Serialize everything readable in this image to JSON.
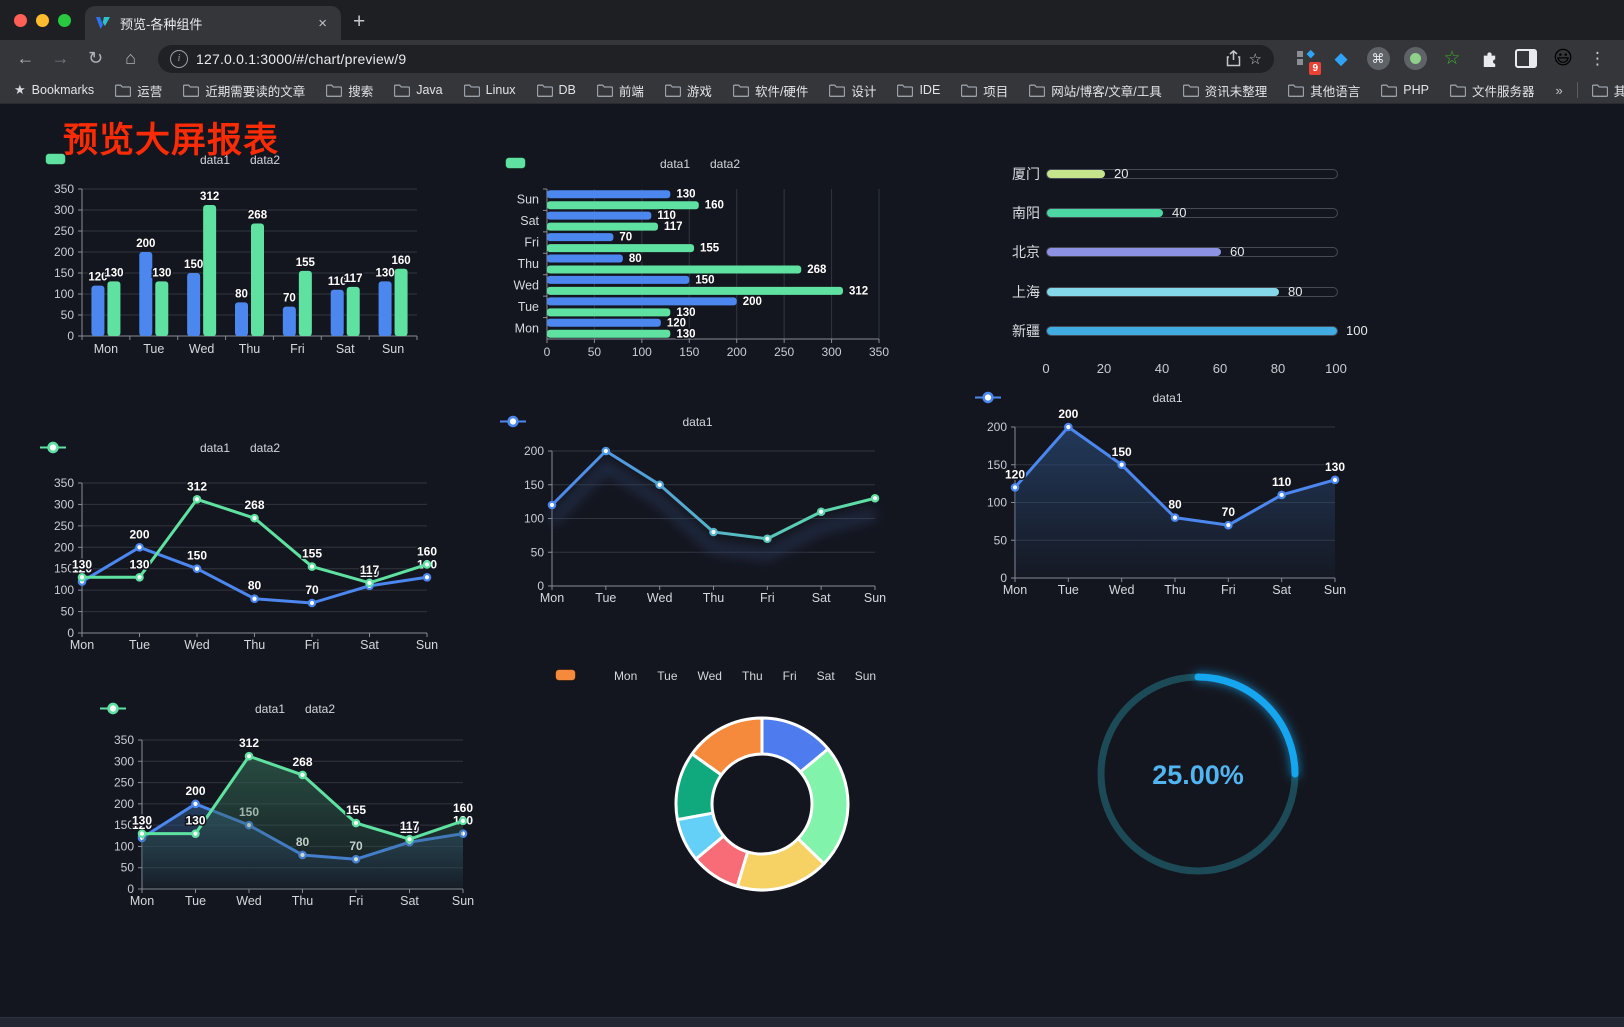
{
  "browser": {
    "traffic_lights": [
      "#ff5f57",
      "#febc2e",
      "#28c840"
    ],
    "tab": {
      "title": "预览-各种组件",
      "close": "×",
      "new_tab": "+"
    },
    "url": "127.0.0.1:3000/#/chart/preview/9",
    "icons": {
      "back": "←",
      "forward": "→",
      "reload": "↻",
      "home": "⌂",
      "info": "i",
      "share": "⬆",
      "star": "☆",
      "bookmarks_star": "★",
      "menu": "⋮",
      "command": "⌘",
      "diamond": "◆",
      "green_star": "☆",
      "emoji": "😃"
    },
    "extension_badge": "9",
    "bookmarks_label": "Bookmarks",
    "bookmarks": [
      "运营",
      "近期需要读的文章",
      "搜索",
      "Java",
      "Linux",
      "DB",
      "前端",
      "游戏",
      "软件/硬件",
      "设计",
      "IDE",
      "项目",
      "网站/博客/文章/工具",
      "资讯未整理",
      "其他语言",
      "PHP",
      "文件服务器"
    ],
    "bookmarks_overflow": "»",
    "other_bookmarks": "其他书签"
  },
  "page": {
    "title": "预览大屏报表",
    "title_color": "#fb2b05",
    "background": "#14161f"
  },
  "chart_data": [
    {
      "id": "bar-vertical",
      "type": "bar",
      "title": "",
      "categories": [
        "Mon",
        "Tue",
        "Wed",
        "Thu",
        "Fri",
        "Sat",
        "Sun"
      ],
      "series": [
        {
          "name": "data1",
          "color": "#4C87F0",
          "values": [
            120,
            200,
            150,
            80,
            70,
            110,
            130
          ]
        },
        {
          "name": "data2",
          "color": "#5FE2A1",
          "values": [
            130,
            130,
            312,
            268,
            155,
            117,
            160
          ]
        }
      ],
      "ylim": [
        0,
        350
      ],
      "ytick_step": 50,
      "grid": true,
      "value_labels": true,
      "legend_position": "top"
    },
    {
      "id": "bar-horizontal",
      "type": "bar-horizontal",
      "title": "",
      "categories": [
        "Mon",
        "Tue",
        "Wed",
        "Thu",
        "Fri",
        "Sat",
        "Sun"
      ],
      "series": [
        {
          "name": "data1",
          "color": "#4C87F0",
          "values": [
            120,
            200,
            150,
            80,
            70,
            110,
            130
          ]
        },
        {
          "name": "data2",
          "color": "#5FE2A1",
          "values": [
            130,
            130,
            312,
            268,
            155,
            117,
            160
          ]
        }
      ],
      "xlim": [
        0,
        350
      ],
      "xtick_step": 50,
      "grid": true,
      "value_labels": true,
      "legend_position": "top"
    },
    {
      "id": "progress-list",
      "type": "progress-bars",
      "max": 100,
      "items": [
        {
          "label": "厦门",
          "value": 20,
          "color": "#C5E48C"
        },
        {
          "label": "南阳",
          "value": 40,
          "color": "#4CD6A4"
        },
        {
          "label": "北京",
          "value": 60,
          "color": "#8E92E2"
        },
        {
          "label": "上海",
          "value": 80,
          "color": "#85D8E9"
        },
        {
          "label": "新疆",
          "value": 100,
          "color": "#41ACE2"
        }
      ],
      "axis_ticks": [
        0,
        20,
        40,
        60,
        80,
        100
      ]
    },
    {
      "id": "line-two",
      "type": "line",
      "title": "",
      "categories": [
        "Mon",
        "Tue",
        "Wed",
        "Thu",
        "Fri",
        "Sat",
        "Sun"
      ],
      "series": [
        {
          "name": "data1",
          "color": "#4C87F0",
          "values": [
            120,
            200,
            150,
            80,
            70,
            110,
            130
          ]
        },
        {
          "name": "data2",
          "color": "#5FE2A1",
          "values": [
            130,
            130,
            312,
            268,
            155,
            117,
            160
          ]
        }
      ],
      "ylim": [
        0,
        350
      ],
      "ytick_step": 50,
      "grid": true,
      "value_labels": true,
      "markers": true,
      "legend_position": "top"
    },
    {
      "id": "line-gradient",
      "type": "line",
      "title": "",
      "categories": [
        "Mon",
        "Tue",
        "Wed",
        "Thu",
        "Fri",
        "Sat",
        "Sun"
      ],
      "series": [
        {
          "name": "data1",
          "color_gradient": [
            "#4C87F0",
            "#5FE2A1"
          ],
          "values": [
            120,
            200,
            150,
            80,
            70,
            110,
            130
          ]
        }
      ],
      "ylim": [
        0,
        200
      ],
      "ytick_step": 50,
      "grid": true,
      "value_labels": false,
      "markers": true,
      "legend_position": "top"
    },
    {
      "id": "area-single",
      "type": "area",
      "title": "",
      "categories": [
        "Mon",
        "Tue",
        "Wed",
        "Thu",
        "Fri",
        "Sat",
        "Sun"
      ],
      "series": [
        {
          "name": "data1",
          "color": "#4C87F0",
          "area_color": "#27456e",
          "values": [
            120,
            200,
            150,
            80,
            70,
            110,
            130
          ]
        }
      ],
      "ylim": [
        0,
        200
      ],
      "ytick_step": 50,
      "grid": true,
      "value_labels": true,
      "markers": true,
      "legend_position": "top"
    },
    {
      "id": "area-two",
      "type": "area",
      "title": "",
      "categories": [
        "Mon",
        "Tue",
        "Wed",
        "Thu",
        "Fri",
        "Sat",
        "Sun"
      ],
      "series": [
        {
          "name": "data1",
          "color": "#4C87F0",
          "area_color": "#2c4a74",
          "values": [
            120,
            200,
            150,
            80,
            70,
            110,
            130
          ]
        },
        {
          "name": "data2",
          "color": "#5FE2A1",
          "area_color": "#2e5e4c",
          "values": [
            130,
            130,
            312,
            268,
            155,
            117,
            160
          ]
        }
      ],
      "ylim": [
        0,
        350
      ],
      "ytick_step": 50,
      "grid": true,
      "value_labels": true,
      "markers": true,
      "legend_position": "top"
    },
    {
      "id": "donut",
      "type": "pie",
      "title": "",
      "categories": [
        "Mon",
        "Tue",
        "Wed",
        "Thu",
        "Fri",
        "Sat",
        "Sun"
      ],
      "values": [
        120,
        200,
        150,
        80,
        70,
        110,
        130
      ],
      "colors": [
        "#4E7CEF",
        "#82F3AB",
        "#F6D163",
        "#F86C77",
        "#64CFF7",
        "#10A97E",
        "#F58A3C"
      ],
      "inner_radius_ratio": 0.58,
      "legend_position": "top"
    },
    {
      "id": "gauge",
      "type": "gauge",
      "value": 25,
      "label": "25.00%",
      "color": "#13A5EF",
      "track_color": "#1C4B57",
      "text_color": "#51B5F2"
    }
  ]
}
